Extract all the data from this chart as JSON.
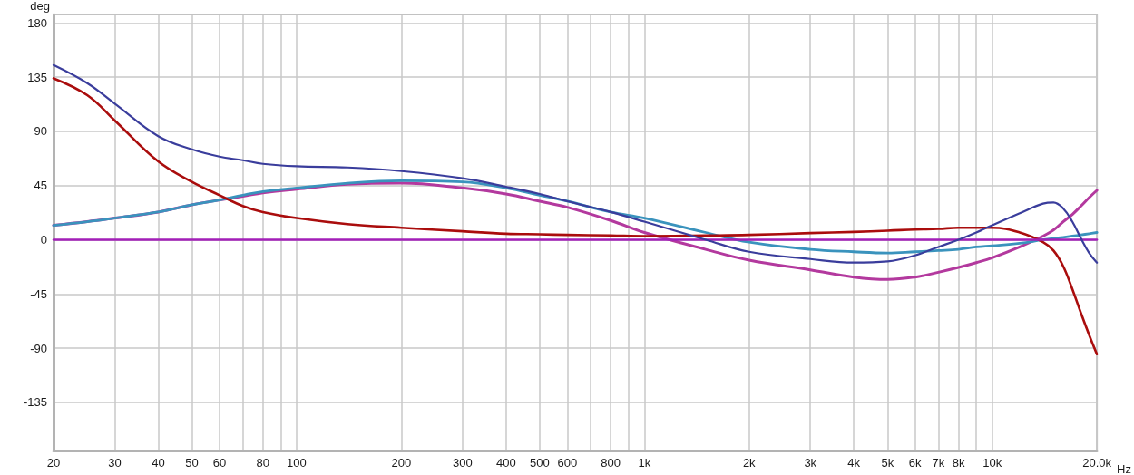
{
  "chart_data": {
    "type": "line",
    "xlabel": "Hz",
    "ylabel": "deg",
    "log": "x",
    "grid": true,
    "marker": "none",
    "line_style": "solid",
    "xlim": [
      20,
      20000
    ],
    "xticks": [
      20,
      30,
      40,
      50,
      60,
      {
        "value": 70,
        "label": null
      },
      80,
      {
        "value": 90,
        "label": null
      },
      100,
      200,
      300,
      400,
      500,
      600,
      {
        "value": 700,
        "label": null
      },
      800,
      {
        "value": 900,
        "label": null
      },
      {
        "value": 1000,
        "label": "1k"
      },
      {
        "value": 2000,
        "label": "2k"
      },
      {
        "value": 3000,
        "label": "3k"
      },
      {
        "value": 4000,
        "label": "4k"
      },
      {
        "value": 5000,
        "label": "5k"
      },
      {
        "value": 6000,
        "label": "6k"
      },
      {
        "value": 7000,
        "label": "7k"
      },
      {
        "value": 8000,
        "label": "8k"
      },
      {
        "value": 9000,
        "label": null
      },
      {
        "value": 10000,
        "label": "10k"
      },
      {
        "value": 20000,
        "label": "20.0k"
      }
    ],
    "ylim": [
      -175,
      187
    ],
    "yticks": [
      -135,
      -90,
      -45,
      0,
      45,
      90,
      135,
      180
    ],
    "x": [
      20,
      25,
      30,
      40,
      50,
      60,
      70,
      80,
      100,
      140,
      200,
      300,
      400,
      500,
      600,
      800,
      1000,
      1500,
      2000,
      3000,
      4000,
      5000,
      6000,
      7000,
      8000,
      9000,
      10000,
      12000,
      14000,
      15000,
      16000,
      17000,
      18000,
      19000,
      20000
    ],
    "series": [
      {
        "color": "#b3399e",
        "values": [
          12,
          15,
          18,
          23,
          29,
          33,
          36,
          39,
          42,
          46,
          47,
          43,
          38,
          32,
          27,
          16,
          6,
          -8,
          -17,
          -25,
          -31,
          -33,
          -31,
          -27,
          -23,
          -19,
          -15,
          -6,
          3,
          8,
          15,
          21,
          28,
          35,
          41
        ]
      },
      {
        "color": "#3a93bd",
        "values": [
          12,
          15,
          18,
          23,
          29,
          33,
          37,
          40,
          43,
          47,
          49,
          48,
          43,
          37,
          32,
          23,
          18,
          6,
          -2,
          -8,
          -10,
          -11,
          -10,
          -9,
          -8,
          -6,
          -5,
          -3,
          0,
          1,
          2,
          3,
          4,
          5,
          6
        ]
      },
      {
        "color": "#aa0d0d",
        "values": [
          134,
          120,
          99,
          65,
          48,
          37,
          28,
          23,
          18,
          13,
          10,
          7,
          5,
          4.5,
          4,
          3.5,
          3,
          3.5,
          4,
          5.5,
          6.5,
          7.5,
          8.5,
          9,
          10,
          10,
          10,
          6,
          -2,
          -9,
          -22,
          -41,
          -61,
          -79,
          -95
        ]
      },
      {
        "color": "#a31fb8",
        "values": [
          0,
          0,
          0,
          0,
          0,
          0,
          0,
          0,
          0,
          0,
          0,
          0,
          0,
          0,
          0,
          0,
          0,
          0,
          0,
          0,
          0,
          0,
          0,
          0,
          0,
          0,
          0,
          0,
          0,
          0,
          0,
          0,
          0,
          0,
          0
        ]
      },
      {
        "color": "#3a3d9c",
        "values": [
          145,
          130,
          113,
          86,
          75,
          69,
          66,
          63,
          61,
          60,
          57,
          51,
          44,
          38,
          32,
          23,
          15,
          0,
          -10,
          -16,
          -19,
          -18,
          -13,
          -6,
          0,
          6,
          12,
          22,
          30,
          31,
          26,
          15,
          1,
          -11,
          -19
        ]
      }
    ]
  }
}
